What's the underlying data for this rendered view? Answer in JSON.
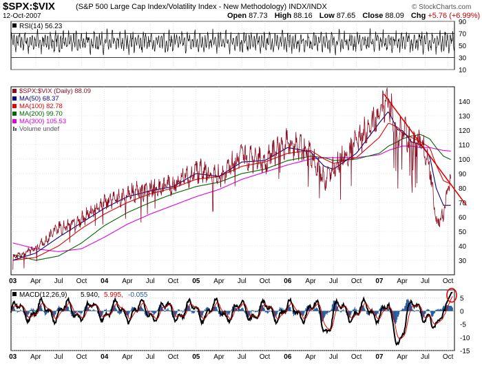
{
  "header": {
    "symbol": "$SPX:$VIX",
    "description": "(S&P 500 Large Cap Index/Volatility Index - New Methodology) INDX/INDX",
    "date": "12-Oct-2007",
    "open_label": "Open",
    "open": "87.73",
    "high_label": "High",
    "high": "88.16",
    "low_label": "Low",
    "low": "87.65",
    "close_label": "Close",
    "close": "88.09",
    "chg_label": "Chg",
    "chg": "+5.76 (+6.99%)",
    "brand": "© StockCharts.com"
  },
  "colors": {
    "price": "#8b0a1e",
    "ma50": "#000080",
    "ma100": "#e00000",
    "ma200": "#006400",
    "ma300": "#e000e0",
    "trendline": "#e00000",
    "macd_hist": "#1f5a9e",
    "macd_line": "#000000",
    "macd_signal": "#e00000",
    "grid": "#c8c8c8",
    "circle": "#e00000"
  },
  "chart_data": [
    {
      "type": "line",
      "title": "RSI(14) 56.23",
      "legend": "RSI(14) 56.23",
      "ylim": [
        10,
        90
      ],
      "y_ticks": [
        10,
        30,
        50,
        70,
        90
      ],
      "reference_lines": [
        30,
        70
      ],
      "last_value": 56.23
    },
    {
      "type": "line",
      "title": "$SPX:$VIX (Daily) 88.09",
      "ylim": [
        20,
        150
      ],
      "y_ticks": [
        30,
        40,
        50,
        60,
        70,
        80,
        90,
        100,
        110,
        120,
        130,
        140
      ],
      "legend": [
        {
          "key": "price",
          "label": "$SPX:$VIX (Daily) 88.09"
        },
        {
          "key": "ma50",
          "label": "MA(50) 68.37"
        },
        {
          "key": "ma100",
          "label": "MA(100) 82.78"
        },
        {
          "key": "ma200",
          "label": "MA(200) 99.70"
        },
        {
          "key": "ma300",
          "label": "MA(300) 105.53"
        },
        {
          "key": "volume",
          "label": "Volume undef"
        }
      ],
      "x": [
        2003.0,
        2003.25,
        2003.5,
        2003.75,
        2004.0,
        2004.25,
        2004.5,
        2004.75,
        2005.0,
        2005.25,
        2005.5,
        2005.75,
        2006.0,
        2006.25,
        2006.4,
        2006.5,
        2006.75,
        2007.0,
        2007.1,
        2007.2,
        2007.25,
        2007.35,
        2007.45,
        2007.55,
        2007.62,
        2007.7,
        2007.78
      ],
      "series": [
        {
          "name": "$SPX:$VIX",
          "key": "price",
          "values": [
            32,
            38,
            52,
            58,
            70,
            75,
            80,
            82,
            92,
            88,
            102,
            98,
            112,
            104,
            85,
            95,
            110,
            132,
            142,
            110,
            125,
            108,
            112,
            95,
            55,
            62,
            88
          ]
        },
        {
          "name": "MA(50)",
          "key": "ma50",
          "values": [
            30,
            35,
            46,
            56,
            66,
            74,
            78,
            81,
            90,
            88,
            98,
            99,
            108,
            105,
            95,
            93,
            104,
            125,
            133,
            120,
            120,
            112,
            110,
            102,
            80,
            68,
            68
          ]
        },
        {
          "name": "MA(100)",
          "key": "ma100",
          "values": [
            30,
            32,
            40,
            52,
            62,
            70,
            76,
            80,
            86,
            88,
            95,
            98,
            104,
            106,
            100,
            97,
            101,
            115,
            125,
            122,
            118,
            115,
            112,
            108,
            96,
            85,
            82.78
          ]
        },
        {
          "name": "MA(200)",
          "key": "ma200",
          "values": [
            34,
            30,
            33,
            42,
            54,
            63,
            70,
            76,
            81,
            84,
            90,
            93,
            99,
            102,
            101,
            99,
            100,
            104,
            109,
            112,
            114,
            116,
            117,
            114,
            108,
            102,
            99.7
          ]
        },
        {
          "name": "MA(300)",
          "key": "ma300",
          "values": [
            42,
            38,
            36,
            38,
            46,
            55,
            62,
            68,
            74,
            79,
            86,
            91,
            96,
            100,
            101,
            101,
            101,
            103,
            106,
            108,
            109,
            109,
            108,
            108,
            107,
            106,
            105.53
          ]
        }
      ],
      "trendline": {
        "x": [
          2007.05,
          2007.95
        ],
        "y": [
          145,
          68
        ]
      },
      "x_labels": [
        "03",
        "Apr",
        "Jul",
        "Oct",
        "04",
        "Apr",
        "Jul",
        "Oct",
        "05",
        "Apr",
        "Jul",
        "Oct",
        "06",
        "Apr",
        "Jul",
        "Oct",
        "07",
        "Apr",
        "Jul",
        "Oct"
      ]
    },
    {
      "type": "line",
      "title": "MACD(12,26,9) 5.940, 5.995, -0.055",
      "legend": {
        "name": "MACD(12,26,9)",
        "macd": "5.940,",
        "signal": "5.995,",
        "hist": "-0.055"
      },
      "ylim": [
        -15,
        8
      ],
      "y_ticks": [
        -15,
        -10,
        -5,
        0,
        5
      ],
      "x_labels": [
        "03",
        "Apr",
        "Jul",
        "Oct",
        "04",
        "Apr",
        "Jul",
        "Oct",
        "05",
        "Apr",
        "Jul",
        "Oct",
        "06",
        "Apr",
        "Jul",
        "Oct",
        "07",
        "Apr",
        "Jul",
        "Oct"
      ],
      "last_macd": 5.94,
      "last_signal": 5.995,
      "last_hist": -0.055
    }
  ]
}
